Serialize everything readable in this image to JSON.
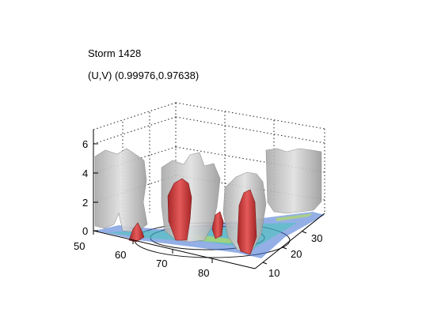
{
  "figure": {
    "title": "Storm 1428",
    "subtitle": "(U,V) (0.99976,0.97638)"
  },
  "chart_data": {
    "type": "3d-isosurface",
    "title": "Storm 1428",
    "subtitle": "(U,V) (0.99976,0.97638)",
    "x_ticks": [
      "50",
      "60",
      "70",
      "80"
    ],
    "y_ticks": [
      "10",
      "20",
      "30"
    ],
    "z_ticks": [
      "0",
      "2",
      "4",
      "6"
    ],
    "grid": true,
    "outer_surface_color": "#c8c8c8",
    "inner_surface_color": "#d23c3c",
    "floor_colors": [
      "#1e2da0",
      "#3c8cdc",
      "#3cc8b4",
      "#b4dc64"
    ]
  }
}
